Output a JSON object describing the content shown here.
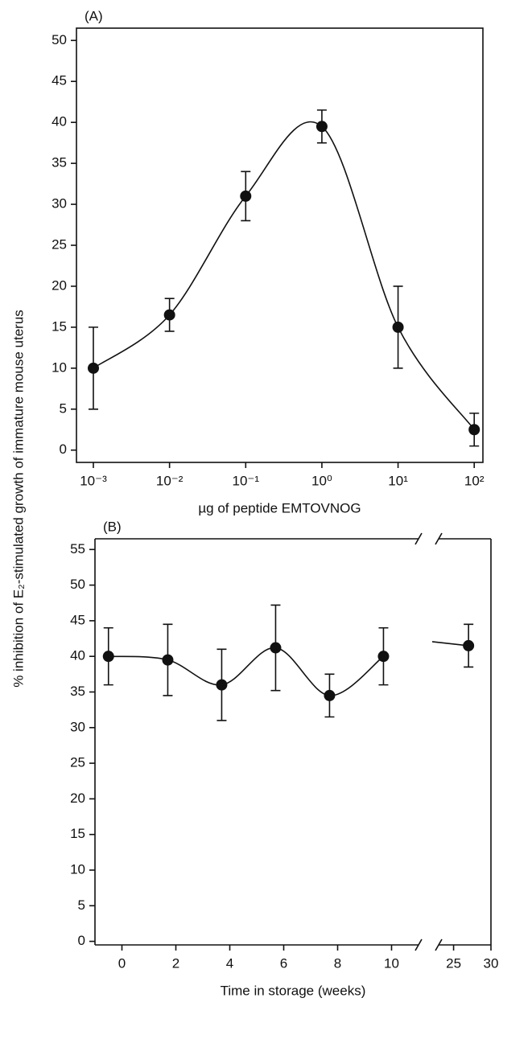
{
  "ylabel": "% inhibition of E₂-stimulated growth of immature mouse uterus",
  "chart_data": [
    {
      "type": "line",
      "panel_label": "(A)",
      "xlabel": "µg of peptide EMTOVNOG",
      "xscale": "log",
      "smooth": true,
      "color": "#111111",
      "x": [
        0.001,
        0.01,
        0.1,
        1,
        10,
        100
      ],
      "values": [
        10,
        16.5,
        31,
        39.5,
        15,
        2.5
      ],
      "errors": [
        5,
        2,
        3,
        2,
        5,
        2
      ],
      "xlim": [
        0.0006,
        130
      ],
      "xticks": [
        {
          "value": 0.001,
          "label": "10⁻³"
        },
        {
          "value": 0.01,
          "label": "10⁻²"
        },
        {
          "value": 0.1,
          "label": "10⁻¹"
        },
        {
          "value": 1,
          "label": "10⁰"
        },
        {
          "value": 10,
          "label": "10¹"
        },
        {
          "value": 100,
          "label": "10²"
        }
      ],
      "ylim": [
        -1.5,
        51.5
      ],
      "yticks": [
        0,
        5,
        10,
        15,
        20,
        25,
        30,
        35,
        40,
        45,
        50
      ]
    },
    {
      "type": "line",
      "panel_label": "(B)",
      "xlabel": "Time in storage (weeks)",
      "smooth": true,
      "color": "#111111",
      "breaks": [
        [
          11,
          23
        ]
      ],
      "x": [
        -0.5,
        1.7,
        3.7,
        5.7,
        7.7,
        9.7,
        27
      ],
      "values": [
        40,
        39.5,
        36,
        41.2,
        34.5,
        40,
        41.5
      ],
      "errors": [
        4,
        5,
        5,
        6,
        3,
        4,
        3
      ],
      "xlim": [
        -1,
        30
      ],
      "xticks": [
        0,
        2,
        4,
        6,
        8,
        10,
        25,
        30
      ],
      "ylim": [
        -0.5,
        56.5
      ],
      "yticks": [
        0,
        5,
        10,
        15,
        20,
        25,
        30,
        35,
        40,
        45,
        50,
        55
      ]
    }
  ]
}
